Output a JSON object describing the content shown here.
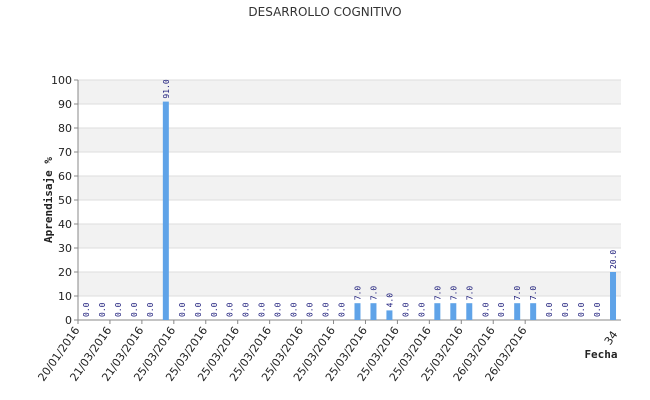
{
  "chart_data": {
    "type": "bar",
    "title": "DESARROLLO COGNITIVO",
    "xlabel": "Fecha",
    "ylabel": "Aprendisaje %",
    "ylim": [
      0,
      100
    ],
    "yticks": [
      0,
      10,
      20,
      30,
      40,
      50,
      60,
      70,
      80,
      90,
      100
    ],
    "grid": true,
    "bar_color": "#5fa3e8",
    "band_color": "#f2f2f2",
    "gridline_color": "#dddddd",
    "x_end_label": "34",
    "values": [
      0,
      0,
      0,
      0,
      0,
      91,
      0,
      0,
      0,
      0,
      0,
      0,
      0,
      0,
      0,
      0,
      0,
      7,
      7,
      4,
      0,
      0,
      7,
      7,
      7,
      0,
      0,
      7,
      7,
      0,
      0,
      0,
      0,
      20
    ],
    "value_labels": [
      "0.0",
      "0.0",
      "0.0",
      "0.0",
      "0.0",
      "91.0",
      "0.0",
      "0.0",
      "0.0",
      "0.0",
      "0.0",
      "0.0",
      "0.0",
      "0.0",
      "0.0",
      "0.0",
      "0.0",
      "7.0",
      "7.0",
      "4.0",
      "0.0",
      "0.0",
      "7.0",
      "7.0",
      "7.0",
      "0.0",
      "0.0",
      "7.0",
      "7.0",
      "0.0",
      "0.0",
      "0.0",
      "0.0",
      "20.0"
    ],
    "category_labels": [
      "20/01/2016",
      "21/03/2016",
      "21/03/2016",
      "25/03/2016",
      "25/03/2016",
      "25/03/2016",
      "25/03/2016",
      "25/03/2016",
      "25/03/2016",
      "25/03/2016",
      "25/03/2016",
      "25/03/2016",
      "25/03/2016",
      "26/03/2016",
      "26/03/2016"
    ]
  }
}
